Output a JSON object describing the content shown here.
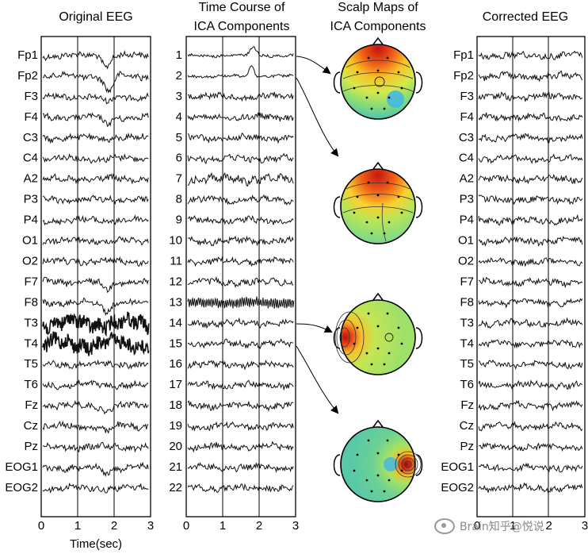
{
  "titles": {
    "original_eeg": "Original EEG",
    "ica_time_course_line1": "Time Course of",
    "ica_time_course_line2": "ICA Components",
    "scalp_maps_line1": "Scalp Maps of",
    "scalp_maps_line2": "ICA Components",
    "corrected_eeg": "Corrected EEG"
  },
  "x_axis": {
    "label": "Time(sec)",
    "ticks": [
      "0",
      "1",
      "2",
      "3"
    ]
  },
  "channels": [
    "Fp1",
    "Fp2",
    "F3",
    "F4",
    "C3",
    "C4",
    "A2",
    "P3",
    "P4",
    "O1",
    "O2",
    "F7",
    "F8",
    "T3",
    "T4",
    "T5",
    "T6",
    "Fz",
    "Cz",
    "Pz",
    "EOG1",
    "EOG2"
  ],
  "components": [
    "1",
    "2",
    "3",
    "4",
    "5",
    "6",
    "7",
    "8",
    "9",
    "10",
    "11",
    "12",
    "13",
    "14",
    "15",
    "16",
    "17",
    "18",
    "19",
    "20",
    "21",
    "22"
  ],
  "scalp_maps": [
    {
      "component": 1,
      "pattern": "frontal"
    },
    {
      "component": 2,
      "pattern": "frontal"
    },
    {
      "component": 14,
      "pattern": "left-temporal"
    },
    {
      "component": 15,
      "pattern": "right-temporal"
    }
  ],
  "watermark": "Brain知乎@悦说",
  "colors": {
    "trace": "#111111",
    "map_low": "#3fb6e8",
    "map_mid": "#b6e65a",
    "map_high": "#d8201a"
  }
}
